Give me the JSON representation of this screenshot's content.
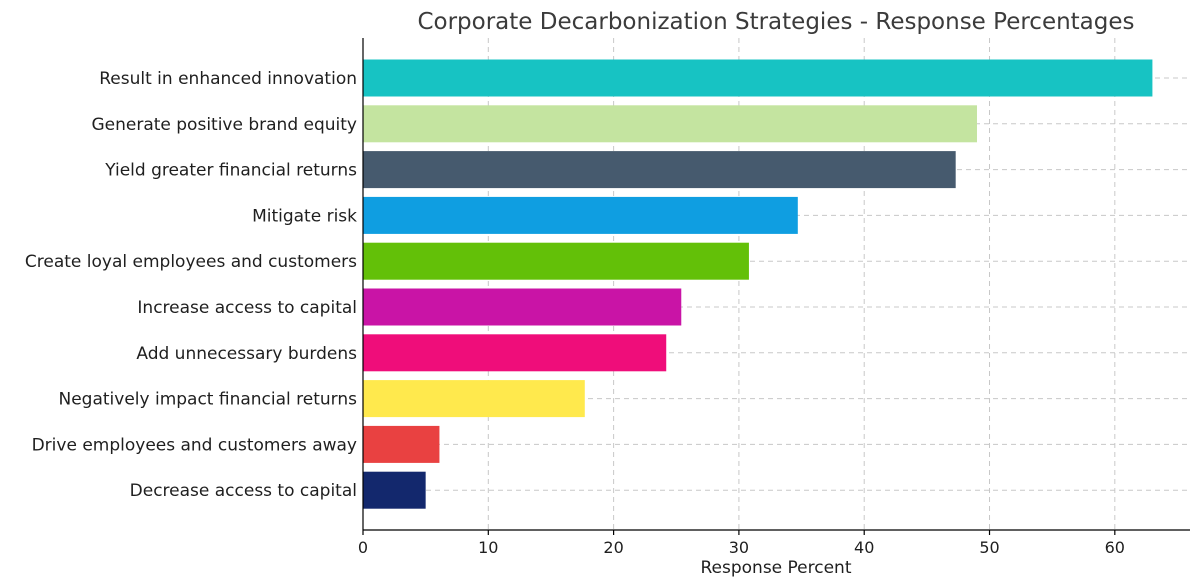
{
  "chart_data": {
    "type": "bar",
    "orientation": "horizontal",
    "title": "Corporate Decarbonization Strategies - Response Percentages",
    "xlabel": "Response Percent",
    "ylabel": "",
    "xlim": [
      0,
      66
    ],
    "xticks": [
      0,
      10,
      20,
      30,
      40,
      50,
      60
    ],
    "grid": true,
    "categories": [
      "Result in enhanced innovation",
      "Generate positive brand equity",
      "Yield greater financial returns",
      "Mitigate risk",
      "Create loyal employees and customers",
      "Increase access to capital",
      "Add unnecessary burdens",
      "Negatively impact financial returns",
      "Drive employees and customers away",
      "Decrease access to capital"
    ],
    "values": [
      63,
      49,
      47.3,
      34.7,
      30.8,
      25.4,
      24.2,
      17.7,
      6.1,
      5
    ],
    "colors": [
      "#17c3c3",
      "#c4e4a0",
      "#465a6e",
      "#0f9ee1",
      "#63c008",
      "#c914a6",
      "#ef0d7a",
      "#ffe94d",
      "#e94141",
      "#13286d"
    ]
  }
}
